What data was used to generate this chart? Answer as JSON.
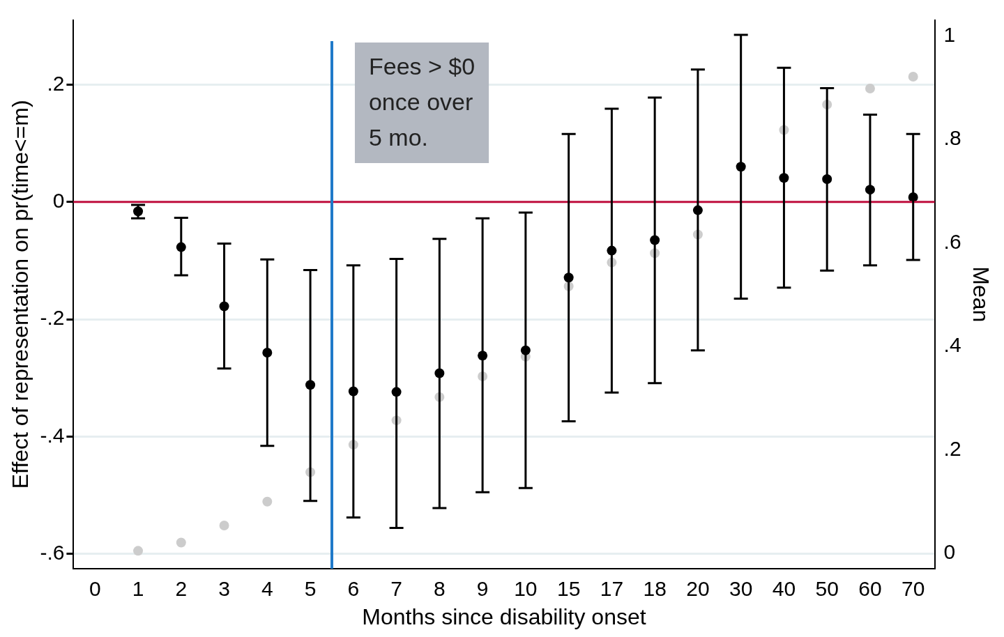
{
  "chart_data": {
    "type": "scatter",
    "xlabel": "Months since disability onset",
    "ylabel": "Effect of representation on pr(time<=m)",
    "y2label": "Mean",
    "categories": [
      "0",
      "1",
      "2",
      "3",
      "4",
      "5",
      "6",
      "7",
      "8",
      "9",
      "10",
      "15",
      "17",
      "18",
      "20",
      "30",
      "40",
      "50",
      "60",
      "70"
    ],
    "series": [
      {
        "type": "scatter",
        "axis": "y",
        "color": "#000000",
        "values": [
          null,
          -0.016,
          -0.077,
          -0.178,
          -0.257,
          -0.312,
          -0.323,
          -0.324,
          -0.292,
          -0.262,
          -0.253,
          -0.129,
          -0.083,
          -0.065,
          -0.014,
          0.06,
          0.041,
          0.039,
          0.021,
          0.008
        ],
        "errors": [
          null,
          [
            -0.028,
            -0.005
          ],
          [
            -0.125,
            -0.027
          ],
          [
            -0.284,
            -0.071
          ],
          [
            -0.416,
            -0.098
          ],
          [
            -0.51,
            -0.116
          ],
          [
            -0.538,
            -0.108
          ],
          [
            -0.556,
            -0.097
          ],
          [
            -0.522,
            -0.063
          ],
          [
            -0.495,
            -0.028
          ],
          [
            -0.488,
            -0.018
          ],
          [
            -0.374,
            0.116
          ],
          [
            -0.325,
            0.159
          ],
          [
            -0.309,
            0.178
          ],
          [
            -0.253,
            0.226
          ],
          [
            -0.165,
            0.285
          ],
          [
            -0.146,
            0.229
          ],
          [
            -0.117,
            0.194
          ],
          [
            -0.108,
            0.149
          ],
          [
            -0.099,
            0.116
          ]
        ]
      },
      {
        "type": "scatter",
        "axis": "y2",
        "color": "#cccccc",
        "values": [
          null,
          0.005,
          0.021,
          0.054,
          0.1,
          0.157,
          0.21,
          0.257,
          0.302,
          0.342,
          0.38,
          0.516,
          0.562,
          0.58,
          0.616,
          null,
          0.818,
          0.867,
          0.898,
          0.921
        ]
      }
    ],
    "ylim": [
      -0.625,
      0.31
    ],
    "yticks": [
      {
        "value": -0.6,
        "label": "-.6"
      },
      {
        "value": -0.4,
        "label": "-.4"
      },
      {
        "value": -0.2,
        "label": "-.2"
      },
      0,
      {
        "value": 0.2,
        "label": ".2"
      }
    ],
    "y2lim": [
      -0.029,
      1.03
    ],
    "y2ticks": [
      0,
      {
        "value": 0.2,
        "label": ".2"
      },
      {
        "value": 0.4,
        "label": ".4"
      },
      {
        "value": 0.6,
        "label": ".6"
      },
      {
        "value": 0.8,
        "label": ".8"
      },
      1
    ],
    "grid": "y",
    "marker": "circle",
    "ref_lines": [
      {
        "axis": "y",
        "value": 0,
        "color": "#c0103f"
      }
    ],
    "annotations": [
      "Fees > $0\nonce over\n5 mo."
    ]
  }
}
